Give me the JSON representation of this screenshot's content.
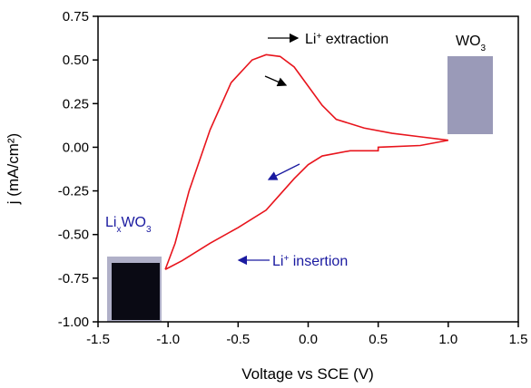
{
  "chart_data": {
    "type": "line",
    "xlabel": "Voltage vs SCE (V)",
    "ylabel": "j (mA/cm²)",
    "xlim": [
      -1.5,
      1.5
    ],
    "xticks": [
      {
        "value": -1.5,
        "label": "-1.5"
      },
      {
        "value": -1,
        "label": "-1.0"
      },
      {
        "value": -0.5,
        "label": "-0.5"
      },
      {
        "value": 0,
        "label": "0.0"
      },
      0.5,
      {
        "value": 1,
        "label": "1.0"
      },
      1.5
    ],
    "ylim": [
      -1,
      0.75
    ],
    "yticks": [
      {
        "value": -1,
        "label": "-1.00"
      },
      -0.75,
      {
        "value": -0.5,
        "label": "-0.50"
      },
      -0.25,
      {
        "value": 0,
        "label": "0.00"
      },
      0.25,
      {
        "value": 0.5,
        "label": "0.50"
      },
      0.75
    ],
    "series": [
      {
        "color": "#e8141c",
        "x": [
          -1.02,
          -0.95,
          -0.85,
          -0.7,
          -0.55,
          -0.4,
          -0.3,
          -0.2,
          -0.1,
          0.0,
          0.1,
          0.2,
          0.4,
          0.6,
          0.8,
          1.0,
          0.8,
          0.5,
          0.5,
          0.3,
          0.1,
          0.0,
          -0.1,
          -0.2,
          -0.3,
          -0.5,
          -0.7,
          -0.9,
          -1.02
        ],
        "values": [
          -0.7,
          -0.55,
          -0.25,
          0.1,
          0.37,
          0.5,
          0.53,
          0.52,
          0.46,
          0.35,
          0.24,
          0.16,
          0.11,
          0.08,
          0.06,
          0.04,
          0.01,
          0.0,
          -0.02,
          -0.02,
          -0.05,
          -0.1,
          -0.18,
          -0.27,
          -0.36,
          -0.46,
          -0.55,
          -0.65,
          -0.7
        ]
      }
    ],
    "annotations": [
      {
        "color": "#000000",
        "parts": [
          {
            "text": "Li"
          },
          {
            "text": "+",
            "shift": "super"
          },
          {
            "text": " extraction"
          }
        ]
      },
      {
        "color": "#000000",
        "parts": [
          {
            "text": "WO"
          },
          {
            "text": "3",
            "shift": "sub"
          }
        ]
      },
      {
        "color": "#1a1aa0",
        "parts": [
          {
            "text": "Li"
          },
          {
            "text": "x",
            "shift": "sub"
          },
          {
            "text": "WO"
          },
          {
            "text": "3",
            "shift": "sub"
          }
        ]
      },
      {
        "color": "#1a1aa0",
        "parts": [
          {
            "text": "Li"
          },
          {
            "text": "+",
            "shift": "super"
          },
          {
            "text": " insertion"
          }
        ]
      }
    ]
  }
}
